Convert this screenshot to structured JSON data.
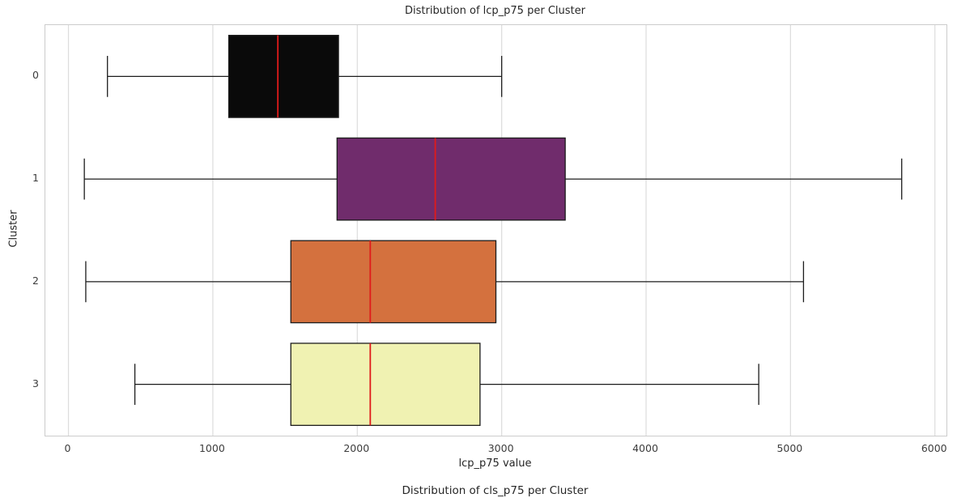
{
  "figure": {
    "title": "Distribution of lcp_p75 per Cluster",
    "xlabel": "lcp_p75 value",
    "ylabel": "Cluster",
    "next_title_partial": "Distribution of cls_p75 per Cluster"
  },
  "chart_data": {
    "type": "boxplot",
    "orientation": "horizontal",
    "title": "Distribution of lcp_p75 per Cluster",
    "xlabel": "lcp_p75 value",
    "ylabel": "Cluster",
    "categories": [
      "0",
      "1",
      "2",
      "3"
    ],
    "x_ticks": [
      0,
      1000,
      2000,
      3000,
      4000,
      5000,
      6000
    ],
    "xlim": [
      -160,
      6080
    ],
    "grid": "vertical-only",
    "legend": "none",
    "median_color": "#e01a1a",
    "series": [
      {
        "cluster": "0",
        "whisker_low": 270,
        "q1": 1110,
        "median": 1450,
        "q3": 1870,
        "whisker_high": 3000,
        "color": "#0a0a0a"
      },
      {
        "cluster": "1",
        "whisker_low": 110,
        "q1": 1860,
        "median": 2540,
        "q3": 3440,
        "whisker_high": 5770,
        "color": "#702c6c"
      },
      {
        "cluster": "2",
        "whisker_low": 120,
        "q1": 1540,
        "median": 2090,
        "q3": 2960,
        "whisker_high": 5090,
        "color": "#d4713e"
      },
      {
        "cluster": "3",
        "whisker_low": 460,
        "q1": 1540,
        "median": 2090,
        "q3": 2850,
        "whisker_high": 4780,
        "color": "#f0f2b2"
      }
    ]
  }
}
